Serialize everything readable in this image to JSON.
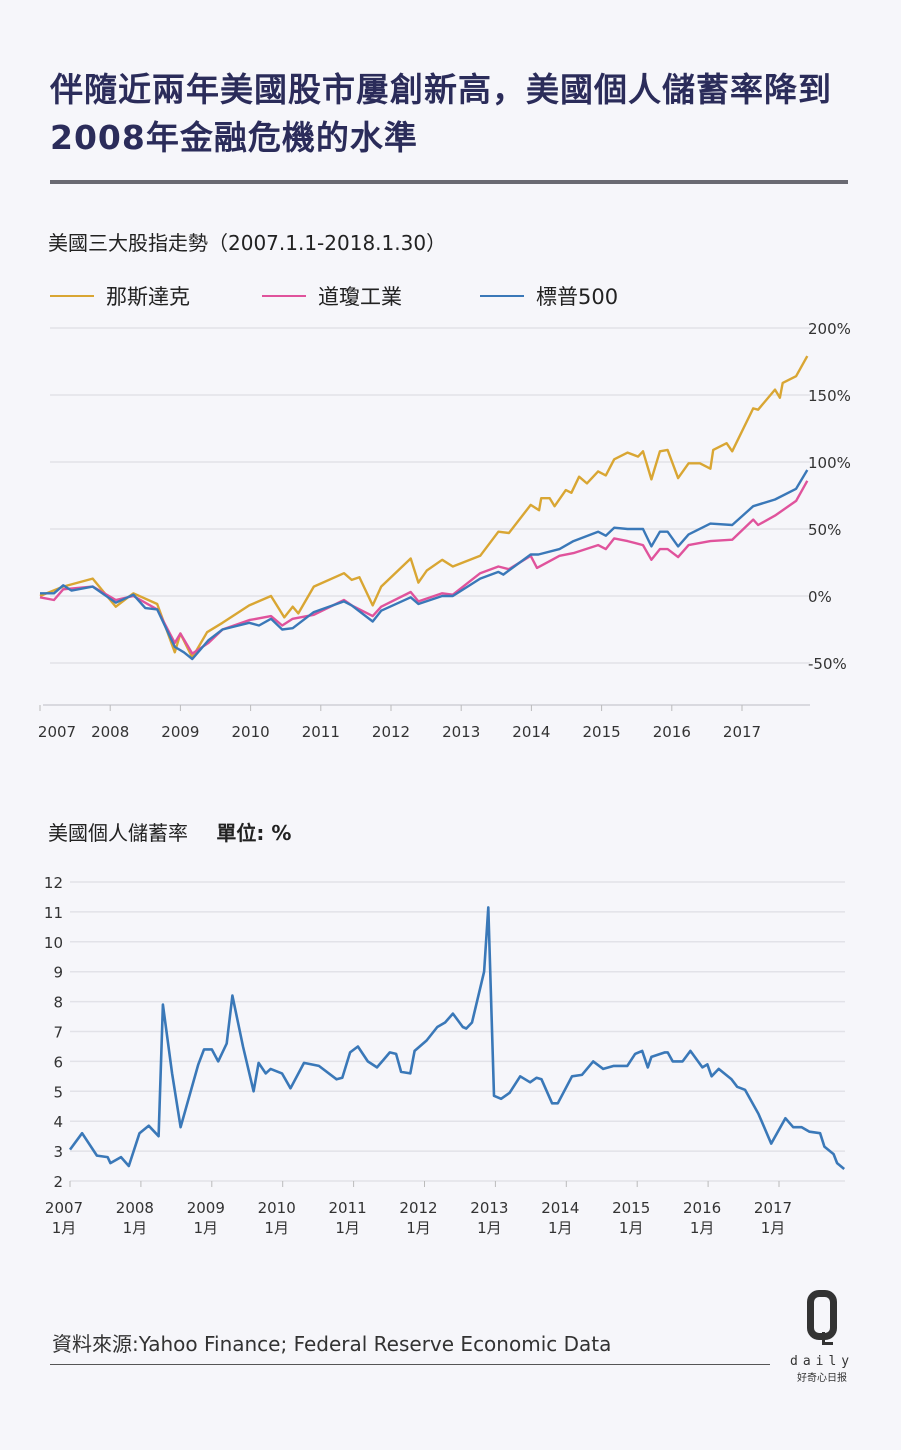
{
  "title": "伴隨近兩年美國股市屢創新高，美國個人儲蓄率降到2008年金融危機的水準",
  "footer": {
    "source": "資料來源:Yahoo Finance; Federal Reserve Economic Data"
  },
  "logo": {
    "letter": "Q",
    "word": "daily",
    "cn": "好奇心日报"
  },
  "colors": {
    "nasdaq": "#d9a633",
    "dow": "#e0539c",
    "sp500": "#3a78b8",
    "savings": "#3a78b8",
    "title": "#2b2c5a"
  },
  "chart_data": [
    {
      "type": "line",
      "title": "美國三大股指走勢（2007.1.1-2018.1.30）",
      "legend_position": "top-left",
      "grid": true,
      "ylim": [
        -50,
        200
      ],
      "xlim": [
        2007,
        2018
      ],
      "yticks": [
        "200%",
        "150%",
        "100%",
        "50%",
        "0%",
        "-50%"
      ],
      "ytick_values": [
        200,
        150,
        100,
        50,
        0,
        -50
      ],
      "xticks": [
        "2007",
        "2008",
        "2009",
        "2010",
        "2011",
        "2012",
        "2013",
        "2014",
        "2015",
        "2016",
        "2017"
      ],
      "series": [
        {
          "name": "那斯達克",
          "color": "#d9a633",
          "points": [
            [
              2007.0,
              0
            ],
            [
              2007.33,
              7
            ],
            [
              2007.75,
              13
            ],
            [
              2008.08,
              -8
            ],
            [
              2008.33,
              2
            ],
            [
              2008.67,
              -6
            ],
            [
              2008.92,
              -42
            ],
            [
              2009.0,
              -28
            ],
            [
              2009.17,
              -46
            ],
            [
              2009.38,
              -27
            ],
            [
              2009.6,
              -20
            ],
            [
              2009.98,
              -7
            ],
            [
              2010.29,
              0
            ],
            [
              2010.48,
              -16
            ],
            [
              2010.6,
              -8
            ],
            [
              2010.68,
              -13
            ],
            [
              2010.9,
              7
            ],
            [
              2011.33,
              17
            ],
            [
              2011.44,
              12
            ],
            [
              2011.55,
              14
            ],
            [
              2011.74,
              -7
            ],
            [
              2011.86,
              7
            ],
            [
              2012.28,
              28
            ],
            [
              2012.39,
              10
            ],
            [
              2012.51,
              19
            ],
            [
              2012.73,
              27
            ],
            [
              2012.88,
              22
            ],
            [
              2013.27,
              30
            ],
            [
              2013.53,
              48
            ],
            [
              2013.68,
              47
            ],
            [
              2013.99,
              68
            ],
            [
              2014.11,
              64
            ],
            [
              2014.14,
              73
            ],
            [
              2014.26,
              73
            ],
            [
              2014.33,
              67
            ],
            [
              2014.49,
              79
            ],
            [
              2014.57,
              77
            ],
            [
              2014.68,
              89
            ],
            [
              2014.79,
              84
            ],
            [
              2014.95,
              93
            ],
            [
              2015.06,
              90
            ],
            [
              2015.18,
              102
            ],
            [
              2015.37,
              107
            ],
            [
              2015.52,
              104
            ],
            [
              2015.59,
              108
            ],
            [
              2015.71,
              87
            ],
            [
              2015.83,
              108
            ],
            [
              2015.94,
              109
            ],
            [
              2016.09,
              88
            ],
            [
              2016.24,
              99
            ],
            [
              2016.4,
              99
            ],
            [
              2016.55,
              95
            ],
            [
              2016.59,
              109
            ],
            [
              2016.78,
              114
            ],
            [
              2016.86,
              108
            ],
            [
              2017.16,
              140
            ],
            [
              2017.23,
              139
            ],
            [
              2017.47,
              154
            ],
            [
              2017.54,
              148
            ],
            [
              2017.58,
              159
            ],
            [
              2017.77,
              164
            ],
            [
              2017.93,
              179
            ]
          ]
        },
        {
          "name": "道瓊工業",
          "color": "#e0539c",
          "points": [
            [
              2007.0,
              -1
            ],
            [
              2007.2,
              -3
            ],
            [
              2007.33,
              5
            ],
            [
              2007.75,
              7
            ],
            [
              2008.08,
              -3
            ],
            [
              2008.33,
              0
            ],
            [
              2008.67,
              -10
            ],
            [
              2008.92,
              -35
            ],
            [
              2009.0,
              -28
            ],
            [
              2009.17,
              -43
            ],
            [
              2009.4,
              -35
            ],
            [
              2009.6,
              -25
            ],
            [
              2009.98,
              -18
            ],
            [
              2010.29,
              -15
            ],
            [
              2010.45,
              -22
            ],
            [
              2010.6,
              -17
            ],
            [
              2010.9,
              -14
            ],
            [
              2011.33,
              -3
            ],
            [
              2011.44,
              -7
            ],
            [
              2011.74,
              -15
            ],
            [
              2011.86,
              -8
            ],
            [
              2012.28,
              3
            ],
            [
              2012.39,
              -4
            ],
            [
              2012.73,
              2
            ],
            [
              2012.88,
              1
            ],
            [
              2013.27,
              17
            ],
            [
              2013.53,
              22
            ],
            [
              2013.68,
              20
            ],
            [
              2013.99,
              30
            ],
            [
              2014.08,
              21
            ],
            [
              2014.4,
              30
            ],
            [
              2014.6,
              32
            ],
            [
              2014.95,
              38
            ],
            [
              2015.06,
              35
            ],
            [
              2015.18,
              43
            ],
            [
              2015.37,
              41
            ],
            [
              2015.59,
              38
            ],
            [
              2015.71,
              27
            ],
            [
              2015.83,
              35
            ],
            [
              2015.94,
              35
            ],
            [
              2016.09,
              29
            ],
            [
              2016.24,
              38
            ],
            [
              2016.55,
              41
            ],
            [
              2016.86,
              42
            ],
            [
              2017.16,
              57
            ],
            [
              2017.23,
              53
            ],
            [
              2017.47,
              60
            ],
            [
              2017.77,
              71
            ],
            [
              2017.93,
              86
            ]
          ]
        },
        {
          "name": "標普500",
          "color": "#3a78b8",
          "points": [
            [
              2007.0,
              2
            ],
            [
              2007.2,
              2
            ],
            [
              2007.33,
              8
            ],
            [
              2007.45,
              4
            ],
            [
              2007.75,
              7
            ],
            [
              2008.08,
              -5
            ],
            [
              2008.33,
              1
            ],
            [
              2008.5,
              -9
            ],
            [
              2008.67,
              -10
            ],
            [
              2008.92,
              -38
            ],
            [
              2009.05,
              -42
            ],
            [
              2009.17,
              -47
            ],
            [
              2009.4,
              -33
            ],
            [
              2009.6,
              -25
            ],
            [
              2009.98,
              -20
            ],
            [
              2010.12,
              -22
            ],
            [
              2010.29,
              -17
            ],
            [
              2010.45,
              -25
            ],
            [
              2010.6,
              -24
            ],
            [
              2010.9,
              -12
            ],
            [
              2011.33,
              -4
            ],
            [
              2011.44,
              -7
            ],
            [
              2011.74,
              -19
            ],
            [
              2011.86,
              -11
            ],
            [
              2012.28,
              -1
            ],
            [
              2012.39,
              -6
            ],
            [
              2012.73,
              0
            ],
            [
              2012.88,
              0
            ],
            [
              2013.27,
              13
            ],
            [
              2013.53,
              18
            ],
            [
              2013.6,
              16
            ],
            [
              2013.99,
              31
            ],
            [
              2014.1,
              31
            ],
            [
              2014.4,
              35
            ],
            [
              2014.6,
              41
            ],
            [
              2014.95,
              48
            ],
            [
              2015.06,
              45
            ],
            [
              2015.18,
              51
            ],
            [
              2015.37,
              50
            ],
            [
              2015.59,
              50
            ],
            [
              2015.71,
              37
            ],
            [
              2015.83,
              48
            ],
            [
              2015.94,
              48
            ],
            [
              2016.09,
              37
            ],
            [
              2016.24,
              46
            ],
            [
              2016.55,
              54
            ],
            [
              2016.86,
              53
            ],
            [
              2017.16,
              67
            ],
            [
              2017.47,
              72
            ],
            [
              2017.77,
              80
            ],
            [
              2017.93,
              94
            ]
          ]
        }
      ]
    },
    {
      "type": "line",
      "title": "美國個人儲蓄率",
      "unit_label": "單位: %",
      "grid": true,
      "ylim": [
        2,
        12
      ],
      "xlim": [
        2007,
        2018
      ],
      "yticks": [
        "12",
        "11",
        "10",
        "9",
        "8",
        "7",
        "6",
        "5",
        "4",
        "3",
        "2"
      ],
      "ytick_values": [
        12,
        11,
        10,
        9,
        8,
        7,
        6,
        5,
        4,
        3,
        2
      ],
      "xticks": [
        "2007",
        "2008",
        "2009",
        "2010",
        "2011",
        "2012",
        "2013",
        "2014",
        "2015",
        "2016",
        "2017"
      ],
      "xtick_sublabel": "1月",
      "series": [
        {
          "color": "#3a78b8",
          "points": [
            [
              2007.0,
              3.05
            ],
            [
              2007.17,
              3.6
            ],
            [
              2007.38,
              2.85
            ],
            [
              2007.53,
              2.8
            ],
            [
              2007.57,
              2.6
            ],
            [
              2007.72,
              2.8
            ],
            [
              2007.83,
              2.5
            ],
            [
              2007.98,
              3.6
            ],
            [
              2008.11,
              3.85
            ],
            [
              2008.25,
              3.5
            ],
            [
              2008.31,
              7.9
            ],
            [
              2008.44,
              5.6
            ],
            [
              2008.56,
              3.8
            ],
            [
              2008.81,
              5.9
            ],
            [
              2008.89,
              6.4
            ],
            [
              2009.0,
              6.4
            ],
            [
              2009.09,
              6.0
            ],
            [
              2009.21,
              6.6
            ],
            [
              2009.29,
              8.2
            ],
            [
              2009.44,
              6.5
            ],
            [
              2009.59,
              5.0
            ],
            [
              2009.66,
              5.95
            ],
            [
              2009.76,
              5.6
            ],
            [
              2009.83,
              5.75
            ],
            [
              2009.99,
              5.6
            ],
            [
              2010.11,
              5.1
            ],
            [
              2010.3,
              5.95
            ],
            [
              2010.51,
              5.85
            ],
            [
              2010.76,
              5.4
            ],
            [
              2010.84,
              5.45
            ],
            [
              2010.95,
              6.3
            ],
            [
              2011.06,
              6.5
            ],
            [
              2011.2,
              6.0
            ],
            [
              2011.33,
              5.8
            ],
            [
              2011.51,
              6.3
            ],
            [
              2011.6,
              6.25
            ],
            [
              2011.67,
              5.65
            ],
            [
              2011.8,
              5.6
            ],
            [
              2011.86,
              6.35
            ],
            [
              2012.03,
              6.7
            ],
            [
              2012.18,
              7.15
            ],
            [
              2012.29,
              7.3
            ],
            [
              2012.4,
              7.6
            ],
            [
              2012.54,
              7.15
            ],
            [
              2012.59,
              7.1
            ],
            [
              2012.67,
              7.3
            ],
            [
              2012.84,
              9.0
            ],
            [
              2012.9,
              11.15
            ],
            [
              2012.98,
              4.85
            ],
            [
              2013.08,
              4.75
            ],
            [
              2013.2,
              4.95
            ],
            [
              2013.35,
              5.5
            ],
            [
              2013.49,
              5.3
            ],
            [
              2013.58,
              5.45
            ],
            [
              2013.65,
              5.4
            ],
            [
              2013.8,
              4.6
            ],
            [
              2013.88,
              4.6
            ],
            [
              2014.08,
              5.5
            ],
            [
              2014.22,
              5.55
            ],
            [
              2014.38,
              6.0
            ],
            [
              2014.52,
              5.75
            ],
            [
              2014.67,
              5.85
            ],
            [
              2014.86,
              5.85
            ],
            [
              2014.97,
              6.25
            ],
            [
              2015.07,
              6.35
            ],
            [
              2015.15,
              5.8
            ],
            [
              2015.2,
              6.15
            ],
            [
              2015.39,
              6.3
            ],
            [
              2015.43,
              6.3
            ],
            [
              2015.5,
              6.0
            ],
            [
              2015.64,
              6.0
            ],
            [
              2015.75,
              6.35
            ],
            [
              2015.92,
              5.8
            ],
            [
              2015.99,
              5.9
            ],
            [
              2016.05,
              5.5
            ],
            [
              2016.15,
              5.75
            ],
            [
              2016.33,
              5.4
            ],
            [
              2016.41,
              5.15
            ],
            [
              2016.52,
              5.05
            ],
            [
              2016.71,
              4.25
            ],
            [
              2016.89,
              3.25
            ],
            [
              2017.09,
              4.1
            ],
            [
              2017.2,
              3.8
            ],
            [
              2017.32,
              3.8
            ],
            [
              2017.43,
              3.65
            ],
            [
              2017.58,
              3.6
            ],
            [
              2017.64,
              3.15
            ],
            [
              2017.77,
              2.9
            ],
            [
              2017.82,
              2.6
            ],
            [
              2017.92,
              2.4
            ]
          ]
        }
      ]
    }
  ]
}
